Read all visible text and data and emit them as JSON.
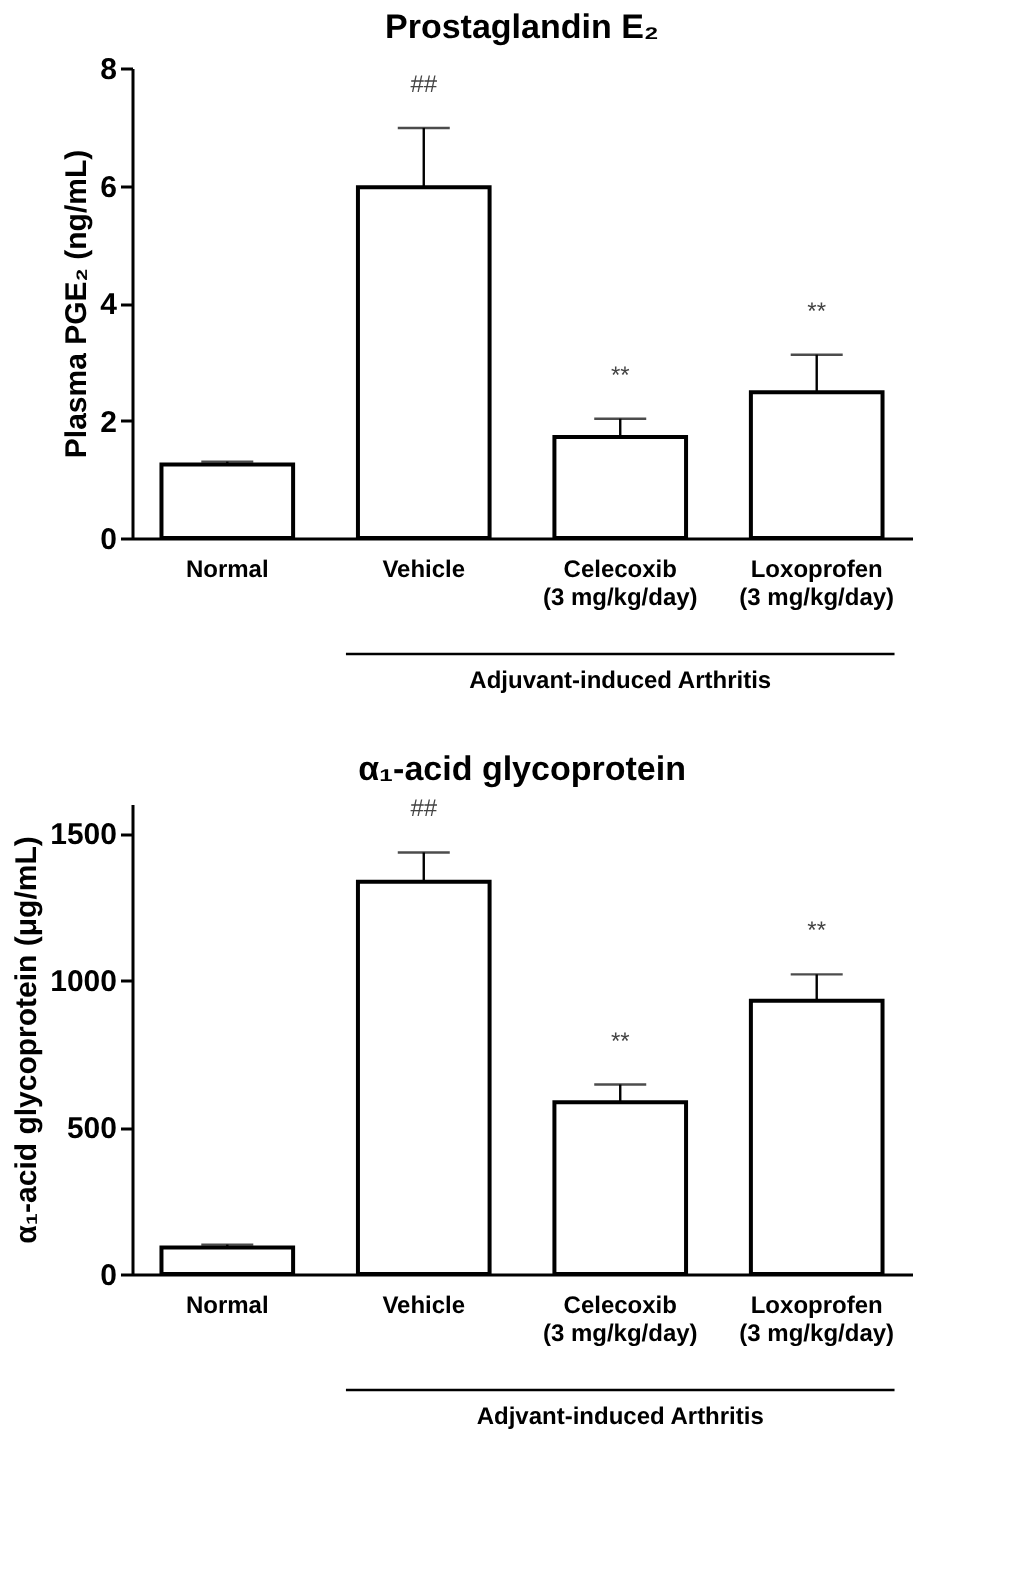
{
  "chart_data": [
    {
      "type": "bar",
      "title": "Prostaglandin E₂",
      "ylabel": "Plasma PGE₂ (ng/mL)",
      "categories": [
        "Normal",
        "Vehicle",
        "Celecoxib (3 mg/kg/day)",
        "Loxoprofen (3 mg/kg/day)"
      ],
      "values": [
        1.25,
        5.97,
        1.72,
        2.48
      ],
      "colors": [
        "#ffffff",
        "#ffffff",
        "#ffffff",
        "#ffffff"
      ],
      "errors": [
        [
          1.25,
          1.3
        ],
        [
          5.97,
          6.98
        ],
        [
          1.72,
          2.03
        ],
        [
          2.48,
          3.12
        ]
      ],
      "ylim": [
        0,
        8
      ],
      "yticks": [
        0,
        2,
        4,
        6,
        8
      ],
      "grid": false,
      "annotations": [
        "##",
        "**",
        "**",
        "Adjuvant-induced Arthritis"
      ]
    },
    {
      "type": "bar",
      "title": "α₁-acid glycoprotein",
      "ylabel": "α₁-acid glycoprotein (μg/mL)",
      "categories": [
        "Normal",
        "Vehicle",
        "Celecoxib (3 mg/kg/day)",
        "Loxoprofen (3 mg/kg/day)"
      ],
      "values": [
        90,
        1335,
        585,
        930
      ],
      "colors": [
        "#ffffff",
        "#ffffff",
        "#ffffff",
        "#ffffff"
      ],
      "errors": [
        [
          90,
          100
        ],
        [
          1335,
          1435
        ],
        [
          585,
          645
        ],
        [
          930,
          1020
        ]
      ],
      "ylim": [
        0,
        1600
      ],
      "yticks": [
        0,
        500,
        1000,
        1500
      ],
      "grid": false,
      "annotations": [
        "##",
        "**",
        "**",
        "Adjvant-induced Arthritis"
      ]
    }
  ]
}
